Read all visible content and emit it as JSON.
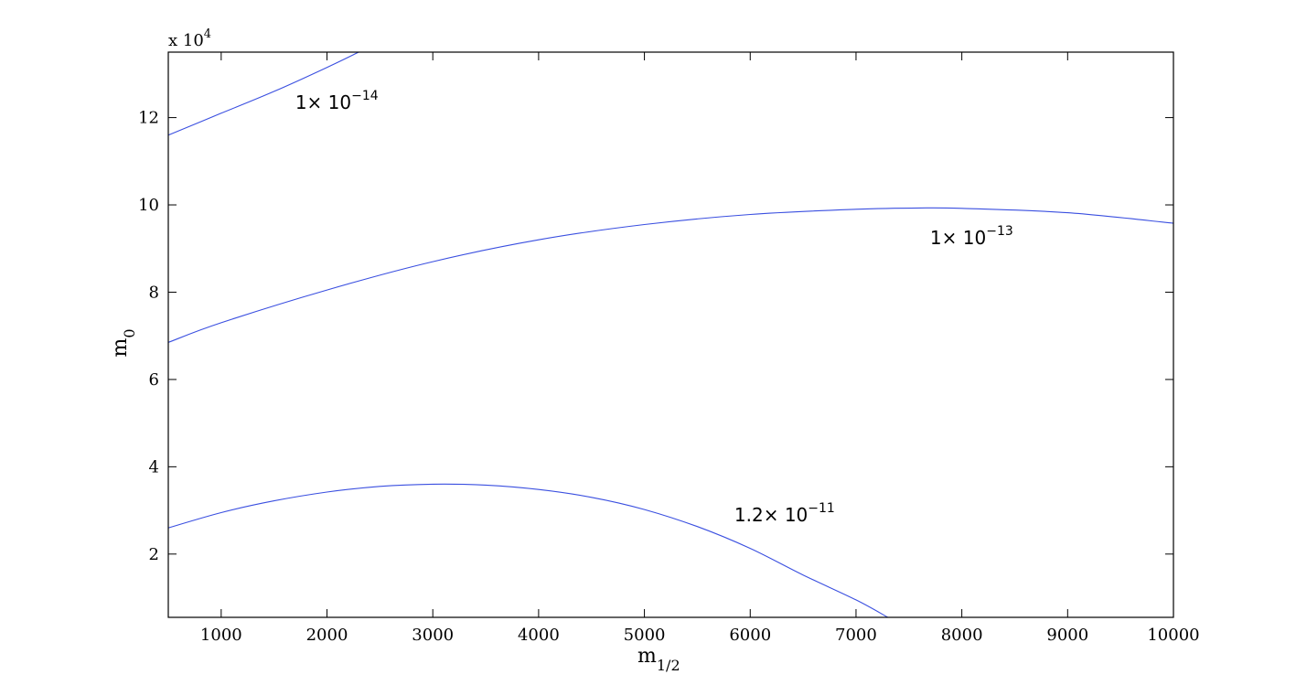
{
  "chart_data": {
    "type": "line",
    "xlabel_base": "m",
    "xlabel_sub": "1/2",
    "ylabel_base": "m",
    "ylabel_sub": "0",
    "y_multiplier_prefix": "x 10",
    "y_multiplier_exp": "4",
    "xlim": [
      500,
      10000
    ],
    "ylim": [
      0.55,
      13.5
    ],
    "xticks": [
      1000,
      2000,
      3000,
      4000,
      5000,
      6000,
      7000,
      8000,
      9000,
      10000
    ],
    "yticks": [
      2,
      4,
      6,
      8,
      10,
      12
    ],
    "grid": false,
    "line_color": "#3a4fe0",
    "series": [
      {
        "label_mantissa": "1× 10",
        "label_exponent": "−14",
        "label_at": [
          1700,
          12.2
        ],
        "x": [
          500,
          1000,
          1500,
          2000,
          2300
        ],
        "y": [
          11.6,
          12.1,
          12.6,
          13.15,
          13.5
        ]
      },
      {
        "label_mantissa": "1× 10",
        "label_exponent": "−13",
        "label_at": [
          7700,
          9.1
        ],
        "x": [
          500,
          1000,
          2000,
          3000,
          4000,
          5000,
          6000,
          7000,
          7600,
          8000,
          9000,
          10000
        ],
        "y": [
          6.85,
          7.3,
          8.05,
          8.7,
          9.2,
          9.55,
          9.78,
          9.9,
          9.93,
          9.92,
          9.82,
          9.58
        ]
      },
      {
        "label_mantissa": "1.2× 10",
        "label_exponent": "−11",
        "label_at": [
          5850,
          2.75
        ],
        "x": [
          500,
          1000,
          1500,
          2000,
          2500,
          3000,
          3500,
          4000,
          4500,
          5000,
          5500,
          6000,
          6500,
          7000,
          7300
        ],
        "y": [
          2.6,
          2.95,
          3.22,
          3.42,
          3.55,
          3.6,
          3.58,
          3.48,
          3.3,
          3.02,
          2.63,
          2.13,
          1.52,
          0.95,
          0.55
        ]
      }
    ]
  }
}
